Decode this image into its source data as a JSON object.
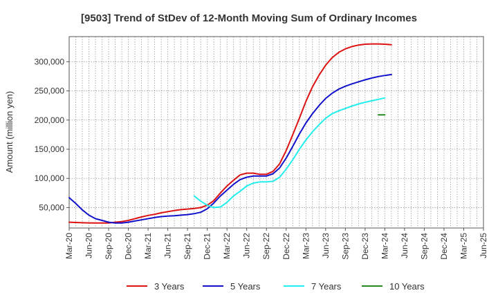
{
  "chart_data": {
    "type": "line",
    "title": "[9503]  Trend of StDev of 12-Month Moving Sum of Ordinary Incomes",
    "ylabel": "Amount (million yen)",
    "xlabel": "",
    "x_ticks": [
      "Mar-20",
      "Jun-20",
      "Sep-20",
      "Dec-20",
      "Mar-21",
      "Jun-21",
      "Sep-21",
      "Dec-21",
      "Mar-22",
      "Jun-22",
      "Sep-22",
      "Dec-22",
      "Mar-23",
      "Jun-23",
      "Sep-23",
      "Dec-23",
      "Mar-24",
      "Jun-24",
      "Sep-24",
      "Dec-24",
      "Mar-25",
      "Jun-25"
    ],
    "y_ticks": [
      50000,
      100000,
      150000,
      200000,
      250000,
      300000
    ],
    "y_tick_labels": [
      "50,000",
      "100,000",
      "150,000",
      "200,000",
      "250,000",
      "300,000"
    ],
    "ylim": [
      15000,
      343000
    ],
    "grid": true,
    "legend_position": "bottom",
    "series": [
      {
        "name": "3 Years",
        "color": "#dd1111",
        "values": [
          [
            0,
            25000
          ],
          [
            1,
            24500
          ],
          [
            2,
            24000
          ],
          [
            3,
            23800
          ],
          [
            4,
            23600
          ],
          [
            5,
            23500
          ],
          [
            6,
            23700
          ],
          [
            7,
            25000
          ],
          [
            8,
            26000
          ],
          [
            9,
            28000
          ],
          [
            10,
            31000
          ],
          [
            11,
            34000
          ],
          [
            12,
            36500
          ],
          [
            13,
            38500
          ],
          [
            14,
            41000
          ],
          [
            15,
            43000
          ],
          [
            16,
            45000
          ],
          [
            17,
            46500
          ],
          [
            18,
            47500
          ],
          [
            19,
            48500
          ],
          [
            20,
            50000
          ],
          [
            21,
            54000
          ],
          [
            22,
            62000
          ],
          [
            23,
            75000
          ],
          [
            24,
            87000
          ],
          [
            25,
            97000
          ],
          [
            26,
            106000
          ],
          [
            27,
            109000
          ],
          [
            28,
            109000
          ],
          [
            29,
            107000
          ],
          [
            30,
            107000
          ],
          [
            31,
            112000
          ],
          [
            32,
            125000
          ],
          [
            33,
            148000
          ],
          [
            34,
            175000
          ],
          [
            35,
            203000
          ],
          [
            36,
            232000
          ],
          [
            37,
            257000
          ],
          [
            38,
            277000
          ],
          [
            39,
            294000
          ],
          [
            40,
            307000
          ],
          [
            41,
            316000
          ],
          [
            42,
            322000
          ],
          [
            43,
            326000
          ],
          [
            44,
            328500
          ],
          [
            45,
            330000
          ],
          [
            46,
            330500
          ],
          [
            47,
            330500
          ],
          [
            48,
            330000
          ],
          [
            49,
            329000
          ]
        ]
      },
      {
        "name": "5 Years",
        "color": "#1111cc",
        "values": [
          [
            0,
            67000
          ],
          [
            1,
            57000
          ],
          [
            2,
            46000
          ],
          [
            3,
            37000
          ],
          [
            4,
            31000
          ],
          [
            5,
            28000
          ],
          [
            6,
            25000
          ],
          [
            7,
            23500
          ],
          [
            8,
            23600
          ],
          [
            9,
            25000
          ],
          [
            10,
            27000
          ],
          [
            11,
            29000
          ],
          [
            12,
            31000
          ],
          [
            13,
            33000
          ],
          [
            14,
            34500
          ],
          [
            15,
            35500
          ],
          [
            16,
            36000
          ],
          [
            17,
            37000
          ],
          [
            18,
            38000
          ],
          [
            19,
            39500
          ],
          [
            20,
            42000
          ],
          [
            21,
            48000
          ],
          [
            22,
            58000
          ],
          [
            23,
            70000
          ],
          [
            24,
            80000
          ],
          [
            25,
            90000
          ],
          [
            26,
            98000
          ],
          [
            27,
            102000
          ],
          [
            28,
            104000
          ],
          [
            29,
            104000
          ],
          [
            30,
            104000
          ],
          [
            31,
            108000
          ],
          [
            32,
            118000
          ],
          [
            33,
            135000
          ],
          [
            34,
            155000
          ],
          [
            35,
            176000
          ],
          [
            36,
            195000
          ],
          [
            37,
            211000
          ],
          [
            38,
            225000
          ],
          [
            39,
            237000
          ],
          [
            40,
            246000
          ],
          [
            41,
            253000
          ],
          [
            42,
            258000
          ],
          [
            43,
            262000
          ],
          [
            44,
            265500
          ],
          [
            45,
            269000
          ],
          [
            46,
            272000
          ],
          [
            47,
            274500
          ],
          [
            48,
            276500
          ],
          [
            49,
            278000
          ]
        ]
      },
      {
        "name": "7 Years",
        "color": "#22eeee",
        "values": [
          [
            19,
            70000
          ],
          [
            20,
            61000
          ],
          [
            21,
            54000
          ],
          [
            22,
            50000
          ],
          [
            23,
            51000
          ],
          [
            24,
            59000
          ],
          [
            25,
            70000
          ],
          [
            26,
            78000
          ],
          [
            27,
            87000
          ],
          [
            28,
            92000
          ],
          [
            29,
            94000
          ],
          [
            30,
            94000
          ],
          [
            31,
            95000
          ],
          [
            32,
            102000
          ],
          [
            33,
            116000
          ],
          [
            34,
            132000
          ],
          [
            35,
            150000
          ],
          [
            36,
            166000
          ],
          [
            37,
            180000
          ],
          [
            38,
            192000
          ],
          [
            39,
            203000
          ],
          [
            40,
            211000
          ],
          [
            41,
            216000
          ],
          [
            42,
            220000
          ],
          [
            43,
            224000
          ],
          [
            44,
            227500
          ],
          [
            45,
            230500
          ],
          [
            46,
            233000
          ],
          [
            47,
            235500
          ],
          [
            48,
            238000
          ]
        ]
      },
      {
        "name": "10 Years",
        "color": "#228822",
        "values": [
          [
            47,
            209000
          ],
          [
            48,
            209000
          ]
        ]
      }
    ]
  }
}
